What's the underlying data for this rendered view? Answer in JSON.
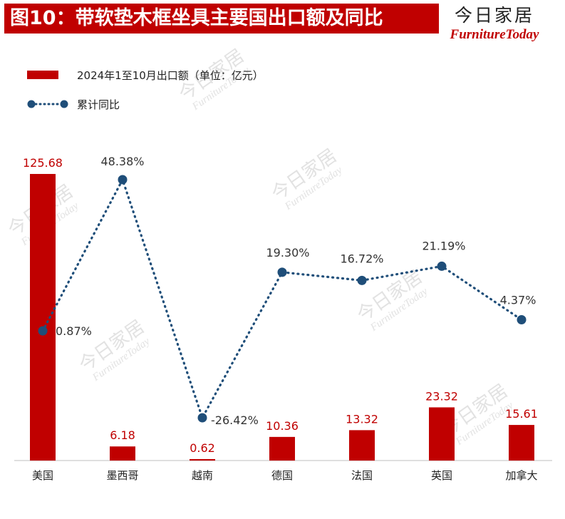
{
  "title": "图10：带软垫木框坐具主要国出口额及同比",
  "brand": {
    "name_cn": "今日家居",
    "name_en": "FurnitureToday"
  },
  "colors": {
    "bar": "#c00000",
    "line": "#1f4e79",
    "title_bg": "#c00000"
  },
  "legend": {
    "bar_label": "2024年1至10月出口额（单位：亿元）",
    "line_label": "累计同比"
  },
  "chart_data": {
    "type": "bar+line",
    "title": "带软垫木框坐具主要国出口额及同比",
    "categories": [
      "美国",
      "墨西哥",
      "越南",
      "德国",
      "法国",
      "英国",
      "加拿大"
    ],
    "series": [
      {
        "name": "2024年1至10月出口额（单位：亿元）",
        "type": "bar",
        "values": [
          125.68,
          6.18,
          0.62,
          10.36,
          13.32,
          23.32,
          15.61
        ],
        "labels": [
          "125.68",
          "6.18",
          "0.62",
          "10.36",
          "13.32",
          "23.32",
          "15.61"
        ]
      },
      {
        "name": "累计同比",
        "type": "line",
        "values": [
          0.87,
          48.38,
          -26.42,
          19.3,
          16.72,
          21.19,
          4.37
        ],
        "labels": [
          "0.87%",
          "48.38%",
          "-26.42%",
          "19.30%",
          "16.72%",
          "21.19%",
          "4.37%"
        ]
      }
    ],
    "bar_ylim": [
      0,
      125.68
    ],
    "line_ylim": [
      -35,
      60
    ],
    "legend_position": "top-left"
  }
}
